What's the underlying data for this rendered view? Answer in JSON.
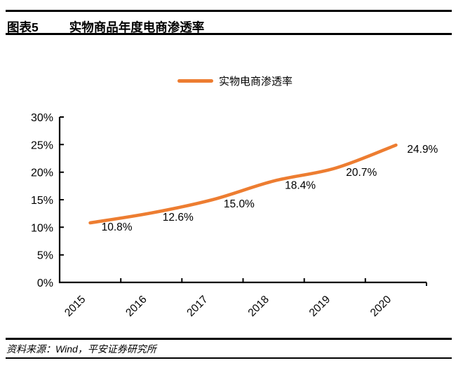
{
  "header": {
    "tag": "图表5",
    "title": "实物商品年度电商渗透率"
  },
  "legend": {
    "label": "实物电商渗透率"
  },
  "chart_data": {
    "type": "line",
    "title": "实物商品年度电商渗透率",
    "categories": [
      "2015",
      "2016",
      "2017",
      "2018",
      "2019",
      "2020"
    ],
    "series": [
      {
        "name": "实物电商渗透率",
        "values": [
          10.8,
          12.6,
          15.0,
          18.4,
          20.7,
          24.9
        ],
        "labels": [
          "10.8%",
          "12.6%",
          "15.0%",
          "18.4%",
          "20.7%",
          "24.9%"
        ],
        "color": "#ED7D31"
      }
    ],
    "xlabel": "",
    "ylabel": "",
    "ylim": [
      0,
      30
    ],
    "ytick_step": 5,
    "ytick_labels": [
      "0%",
      "5%",
      "10%",
      "15%",
      "20%",
      "25%",
      "30%"
    ],
    "grid": false,
    "legend_position": "top",
    "axis_color": "#000000"
  },
  "footer": {
    "source": "资料来源：Wind，平安证券研究所"
  }
}
